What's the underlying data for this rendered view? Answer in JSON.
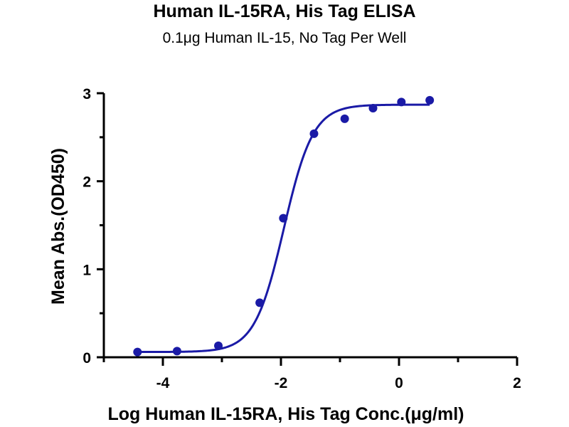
{
  "chart_data": {
    "type": "scatter",
    "title": "Human IL-15RA, His Tag ELISA",
    "subtitle": "0.1μg Human IL-15, No Tag Per Well",
    "xlabel": "Log Human IL-15RA, His Tag Conc.(μg/ml)",
    "ylabel": "Mean Abs.(OD450)",
    "xlim": [
      -5,
      2
    ],
    "ylim": [
      0,
      3
    ],
    "x_ticks": [
      -4,
      -2,
      0,
      2
    ],
    "x_tick_labels": [
      "-4",
      "-2",
      "0",
      "2"
    ],
    "y_ticks": [
      0,
      1,
      2,
      3
    ],
    "y_tick_labels": [
      "0",
      "1",
      "2",
      "3"
    ],
    "grid": false,
    "color": "#1a1aa6",
    "points": {
      "x": [
        -4.43,
        -3.76,
        -3.06,
        -2.36,
        -1.96,
        -1.44,
        -0.92,
        -0.44,
        0.04,
        0.52
      ],
      "y": [
        0.06,
        0.07,
        0.13,
        0.62,
        1.58,
        2.54,
        2.71,
        2.83,
        2.9,
        2.92
      ]
    },
    "fit": {
      "type": "4PL sigmoid",
      "bottom": 0.06,
      "top": 2.87,
      "log_ec50": -1.95,
      "hill_slope": 1.75
    }
  }
}
